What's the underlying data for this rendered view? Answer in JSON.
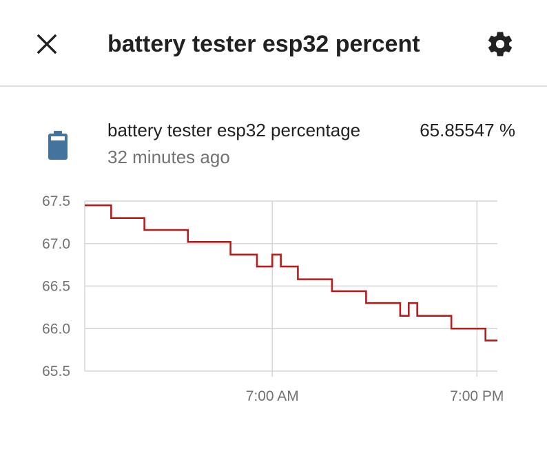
{
  "header": {
    "title": "battery tester esp32 percent",
    "close_icon": "close-icon",
    "settings_icon": "gear-icon"
  },
  "entity": {
    "icon": "battery-icon",
    "name": "battery tester esp32 percentage",
    "last_changed": "32 minutes ago",
    "state": "65.85547 %"
  },
  "colors": {
    "line": "#b71c1c",
    "battery_icon": "#44739e",
    "grid": "#d6d6d6"
  },
  "chart_data": {
    "type": "line",
    "step": true,
    "ylim": [
      65.5,
      67.5
    ],
    "yticks": [
      "67.5",
      "67.0",
      "66.5",
      "66.0",
      "65.5"
    ],
    "xticks": [
      "7:00 AM",
      "7:00 PM"
    ],
    "grid": true,
    "series": [
      {
        "x": [
          0,
          1.55,
          3.5,
          6.05,
          8.55,
          10.1,
          11.0,
          11.5,
          12.5,
          14.5,
          16.5,
          18.5,
          19.0,
          19.5,
          21.5,
          23.5,
          24.2
        ],
        "values": [
          67.45,
          67.3,
          67.16,
          67.02,
          66.87,
          66.73,
          66.87,
          66.73,
          66.58,
          66.44,
          66.3,
          66.15,
          66.3,
          66.15,
          66.0,
          65.86,
          65.86
        ]
      }
    ]
  }
}
